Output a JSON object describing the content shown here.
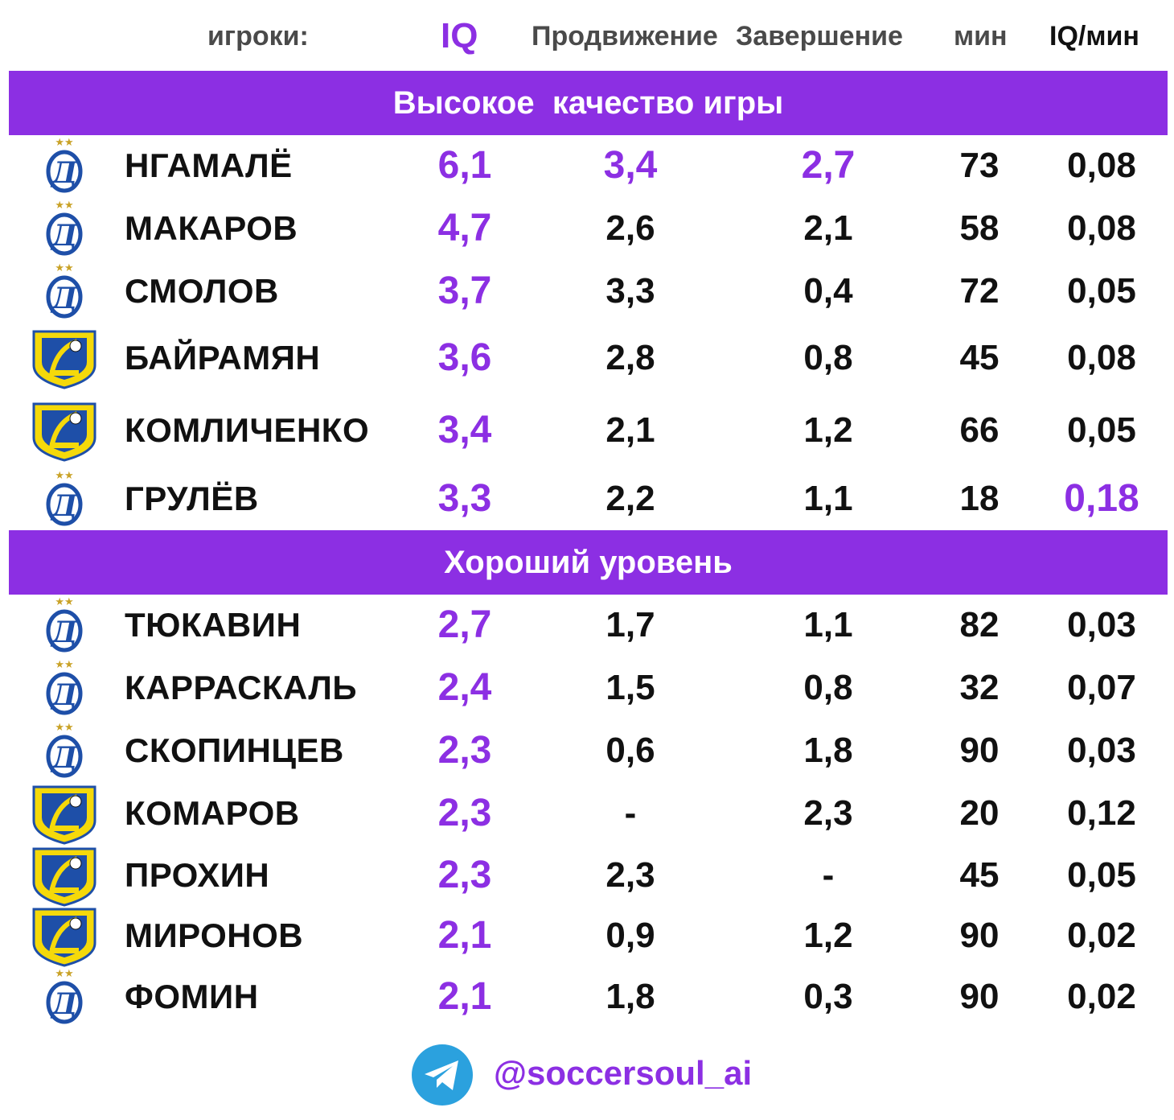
{
  "headers": {
    "players": "игроки:",
    "iq": "IQ",
    "progress": "Продвижение",
    "finish": "Завершение",
    "min": "мин",
    "iq_per_min": "IQ/мин"
  },
  "sections": [
    {
      "title": "Высокое  качество игры",
      "rows": [
        {
          "club": "dynamo",
          "name": "НГАМАЛЁ",
          "iq": "6,1",
          "progress": "3,4",
          "finish": "2,7",
          "min": "73",
          "iq_min": "0,08",
          "hl": [
            "progress",
            "finish"
          ]
        },
        {
          "club": "dynamo",
          "name": "МАКАРОВ",
          "iq": "4,7",
          "progress": "2,6",
          "finish": "2,1",
          "min": "58",
          "iq_min": "0,08",
          "hl": []
        },
        {
          "club": "dynamo",
          "name": "СМОЛОВ",
          "iq": "3,7",
          "progress": "3,3",
          "finish": "0,4",
          "min": "72",
          "iq_min": "0,05",
          "hl": []
        },
        {
          "club": "rostov",
          "name": "БАЙРАМЯН",
          "iq": "3,6",
          "progress": "2,8",
          "finish": "0,8",
          "min": "45",
          "iq_min": "0,08",
          "hl": []
        },
        {
          "club": "rostov",
          "name": "КОМЛИЧЕНКО",
          "iq": "3,4",
          "progress": "2,1",
          "finish": "1,2",
          "min": "66",
          "iq_min": "0,05",
          "hl": []
        },
        {
          "club": "dynamo",
          "name": "ГРУЛЁВ",
          "iq": "3,3",
          "progress": "2,2",
          "finish": "1,1",
          "min": "18",
          "iq_min": "0,18",
          "hl": [
            "iq_min"
          ]
        }
      ]
    },
    {
      "title": "Хороший уровень",
      "rows": [
        {
          "club": "dynamo",
          "name": "ТЮКАВИН",
          "iq": "2,7",
          "progress": "1,7",
          "finish": "1,1",
          "min": "82",
          "iq_min": "0,03",
          "hl": []
        },
        {
          "club": "dynamo",
          "name": "КАРРАСКАЛЬ",
          "iq": "2,4",
          "progress": "1,5",
          "finish": "0,8",
          "min": "32",
          "iq_min": "0,07",
          "hl": []
        },
        {
          "club": "dynamo",
          "name": "СКОПИНЦЕВ",
          "iq": "2,3",
          "progress": "0,6",
          "finish": "1,8",
          "min": "90",
          "iq_min": "0,03",
          "hl": []
        },
        {
          "club": "rostov",
          "name": "КОМАРОВ",
          "iq": "2,3",
          "progress": "-",
          "finish": "2,3",
          "min": "20",
          "iq_min": "0,12",
          "hl": []
        },
        {
          "club": "rostov",
          "name": "ПРОХИН",
          "iq": "2,3",
          "progress": "2,3",
          "finish": "-",
          "min": "45",
          "iq_min": "0,05",
          "hl": []
        },
        {
          "club": "rostov",
          "name": "МИРОНОВ",
          "iq": "2,1",
          "progress": "0,9",
          "finish": "1,2",
          "min": "90",
          "iq_min": "0,02",
          "hl": []
        },
        {
          "club": "dynamo",
          "name": "ФОМИН",
          "iq": "2,1",
          "progress": "1,8",
          "finish": "0,3",
          "min": "90",
          "iq_min": "0,02",
          "hl": []
        }
      ]
    }
  ],
  "footer": {
    "icon": "telegram-icon",
    "handle": "@soccersoul_ai"
  },
  "colors": {
    "accent": "#8c2fe3",
    "dynamo_blue": "#1e4fa8",
    "rostov_yellow": "#f5d90a"
  }
}
